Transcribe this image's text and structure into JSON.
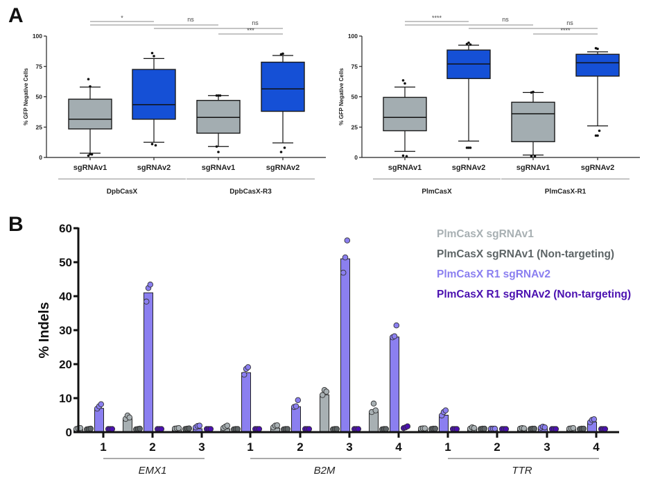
{
  "panels": {
    "A": {
      "label": "A"
    },
    "B": {
      "label": "B"
    }
  },
  "chart_data": [
    {
      "type": "box",
      "panel": "A-left",
      "title": "",
      "ylabel": "% GFP Negative Cells",
      "ylim": [
        0,
        100
      ],
      "yticks": [
        0,
        25,
        50,
        75,
        100
      ],
      "categories": [
        "sgRNAv1",
        "sgRNAv2",
        "sgRNAv1",
        "sgRNAv2"
      ],
      "groups": [
        {
          "name": "DpbCasX",
          "categories": [
            0,
            1
          ]
        },
        {
          "name": "DpbCasX-R3",
          "categories": [
            2,
            3
          ]
        }
      ],
      "colors": [
        "#a3adb1",
        "#1550d6",
        "#a3adb1",
        "#1550d6"
      ],
      "boxes": [
        {
          "min": 3.5,
          "q1": 23.5,
          "median": 31.5,
          "q3": 48,
          "max": 58,
          "outliers": [
            64.5,
            58.5,
            2.5,
            1.5,
            2.8
          ]
        },
        {
          "min": 12.5,
          "q1": 31.5,
          "median": 43.5,
          "q3": 72.5,
          "max": 81.5,
          "outliers": [
            86,
            83.5,
            10,
            11
          ]
        },
        {
          "min": 9,
          "q1": 20,
          "median": 33,
          "q3": 47,
          "max": 51,
          "outliers": [
            51,
            51,
            51,
            9,
            4.5
          ]
        },
        {
          "min": 12,
          "q1": 38,
          "median": 56.5,
          "q3": 78.5,
          "max": 84,
          "outliers": [
            85,
            85.5,
            8,
            4.5
          ]
        }
      ],
      "significance": [
        {
          "from": 0,
          "to": 1,
          "label": "*"
        },
        {
          "from": 0,
          "to": 2,
          "label": "ns"
        },
        {
          "from": 1,
          "to": 3,
          "label": "ns"
        },
        {
          "from": 2,
          "to": 3,
          "label": "***"
        }
      ]
    },
    {
      "type": "box",
      "panel": "A-right",
      "title": "",
      "ylabel": "% GFP Negative Cells",
      "ylim": [
        0,
        100
      ],
      "yticks": [
        0,
        25,
        50,
        75,
        100
      ],
      "categories": [
        "sgRNAv1",
        "sgRNAv2",
        "sgRNAv1",
        "sgRNAv2"
      ],
      "groups": [
        {
          "name": "PlmCasX",
          "categories": [
            0,
            1
          ]
        },
        {
          "name": "PlmCasX-R1",
          "categories": [
            2,
            3
          ]
        }
      ],
      "colors": [
        "#a3adb1",
        "#1550d6",
        "#a3adb1",
        "#1550d6"
      ],
      "boxes": [
        {
          "min": 5,
          "q1": 22,
          "median": 33,
          "q3": 49.5,
          "max": 58,
          "outliers": [
            63.5,
            61,
            1,
            1.5
          ]
        },
        {
          "min": 13.5,
          "q1": 65,
          "median": 77,
          "q3": 88.5,
          "max": 92.5,
          "outliers": [
            93.5,
            94.5,
            93,
            8,
            8,
            8
          ]
        },
        {
          "min": 2,
          "q1": 13,
          "median": 36,
          "q3": 45.5,
          "max": 53.5,
          "outliers": [
            53.5,
            54,
            1,
            1
          ]
        },
        {
          "min": 26,
          "q1": 67,
          "median": 78,
          "q3": 85,
          "max": 87,
          "outliers": [
            90,
            89.5,
            22,
            18,
            18
          ]
        }
      ],
      "significance": [
        {
          "from": 0,
          "to": 1,
          "label": "****"
        },
        {
          "from": 0,
          "to": 2,
          "label": "ns"
        },
        {
          "from": 1,
          "to": 3,
          "label": "ns"
        },
        {
          "from": 2,
          "to": 3,
          "label": "****"
        }
      ]
    },
    {
      "type": "bar",
      "panel": "B",
      "title": "",
      "ylabel": "% Indels",
      "xlabel": "",
      "ylim": [
        0,
        60
      ],
      "yticks": [
        0,
        10,
        20,
        30,
        40,
        50,
        60
      ],
      "grid": false,
      "legend_position": "top-right",
      "categories": [
        "1",
        "2",
        "3",
        "1",
        "2",
        "3",
        "4",
        "1",
        "2",
        "3",
        "4"
      ],
      "groups": [
        {
          "name": "EMX1",
          "categories": [
            0,
            1,
            2
          ]
        },
        {
          "name": "B2M",
          "categories": [
            3,
            4,
            5,
            6
          ]
        },
        {
          "name": "TTR",
          "categories": [
            7,
            8,
            9,
            10
          ]
        }
      ],
      "series": [
        {
          "name": "PlmCasX sgRNAv1",
          "color": "#a8b0b3",
          "values": [
            0.7,
            4.0,
            0.7,
            1.0,
            1.2,
            11.0,
            6.0,
            0.7,
            0.8,
            0.7,
            0.7
          ],
          "points": [
            [
              0.5,
              0.7,
              0.8
            ],
            [
              3.5,
              4.5,
              3.9
            ],
            [
              0.6,
              0.7,
              0.8
            ],
            [
              0.8,
              1.2,
              1.5
            ],
            [
              1.0,
              1.5,
              1.6
            ],
            [
              10.5,
              12.0,
              11.5
            ],
            [
              5.5,
              8.0,
              6.0
            ],
            [
              0.6,
              0.7,
              0.7
            ],
            [
              0.6,
              1.0,
              0.8
            ],
            [
              0.6,
              0.8,
              0.7
            ],
            [
              0.6,
              0.7,
              0.8
            ]
          ]
        },
        {
          "name": "PlmCasX sgRNAv1 (Non-targeting)",
          "color": "#5d6466",
          "values": [
            0.5,
            0.5,
            0.6,
            0.5,
            0.5,
            0.5,
            0.5,
            0.6,
            0.6,
            0.6,
            0.6
          ],
          "points": [
            [
              0.4,
              0.5,
              0.6
            ],
            [
              0.4,
              0.5,
              0.6
            ],
            [
              0.5,
              0.6,
              0.7
            ],
            [
              0.4,
              0.5,
              0.5
            ],
            [
              0.4,
              0.5,
              0.5
            ],
            [
              0.4,
              0.5,
              0.5
            ],
            [
              0.4,
              0.5,
              0.5
            ],
            [
              0.5,
              0.6,
              0.6
            ],
            [
              0.5,
              0.6,
              0.6
            ],
            [
              0.5,
              0.6,
              0.6
            ],
            [
              0.5,
              0.6,
              0.6
            ]
          ]
        },
        {
          "name": "PlmCasX R1 sgRNAv2",
          "color": "#8b7ff0",
          "values": [
            7.0,
            41.0,
            1.0,
            17.5,
            7.5,
            51.0,
            28.0,
            5.0,
            0.6,
            1.0,
            3.0
          ],
          "points": [
            [
              6.5,
              7.2,
              7.8
            ],
            [
              38.0,
              42.0,
              43.0
            ],
            [
              1.0,
              1.4,
              1.5
            ],
            [
              16.5,
              18.2,
              18.7
            ],
            [
              7.0,
              7.2,
              9.0
            ],
            [
              46.5,
              51.0,
              56.0
            ],
            [
              27.5,
              27.8,
              31.0
            ],
            [
              4.5,
              5.5,
              6.0
            ],
            [
              0.6,
              0.6,
              0.6
            ],
            [
              0.9,
              1.2,
              1.0
            ],
            [
              2.5,
              3.2,
              3.4
            ]
          ]
        },
        {
          "name": "PlmCasX R1 sgRNAv2 (Non-targeting)",
          "color": "#4a10b0",
          "values": [
            0.5,
            0.5,
            0.5,
            0.5,
            0.5,
            0.5,
            1.0,
            0.5,
            0.5,
            0.5,
            0.5
          ],
          "points": [
            [
              0.5,
              0.5,
              0.5
            ],
            [
              0.5,
              0.5,
              0.5
            ],
            [
              0.5,
              0.5,
              0.5
            ],
            [
              0.5,
              0.5,
              0.5
            ],
            [
              0.5,
              0.5,
              0.5
            ],
            [
              0.5,
              0.5,
              0.5
            ],
            [
              0.8,
              1.0,
              1.3
            ],
            [
              0.5,
              0.5,
              0.5
            ],
            [
              0.5,
              0.5,
              0.5
            ],
            [
              0.5,
              0.5,
              0.5
            ],
            [
              0.5,
              0.5,
              0.5
            ]
          ]
        }
      ]
    }
  ]
}
